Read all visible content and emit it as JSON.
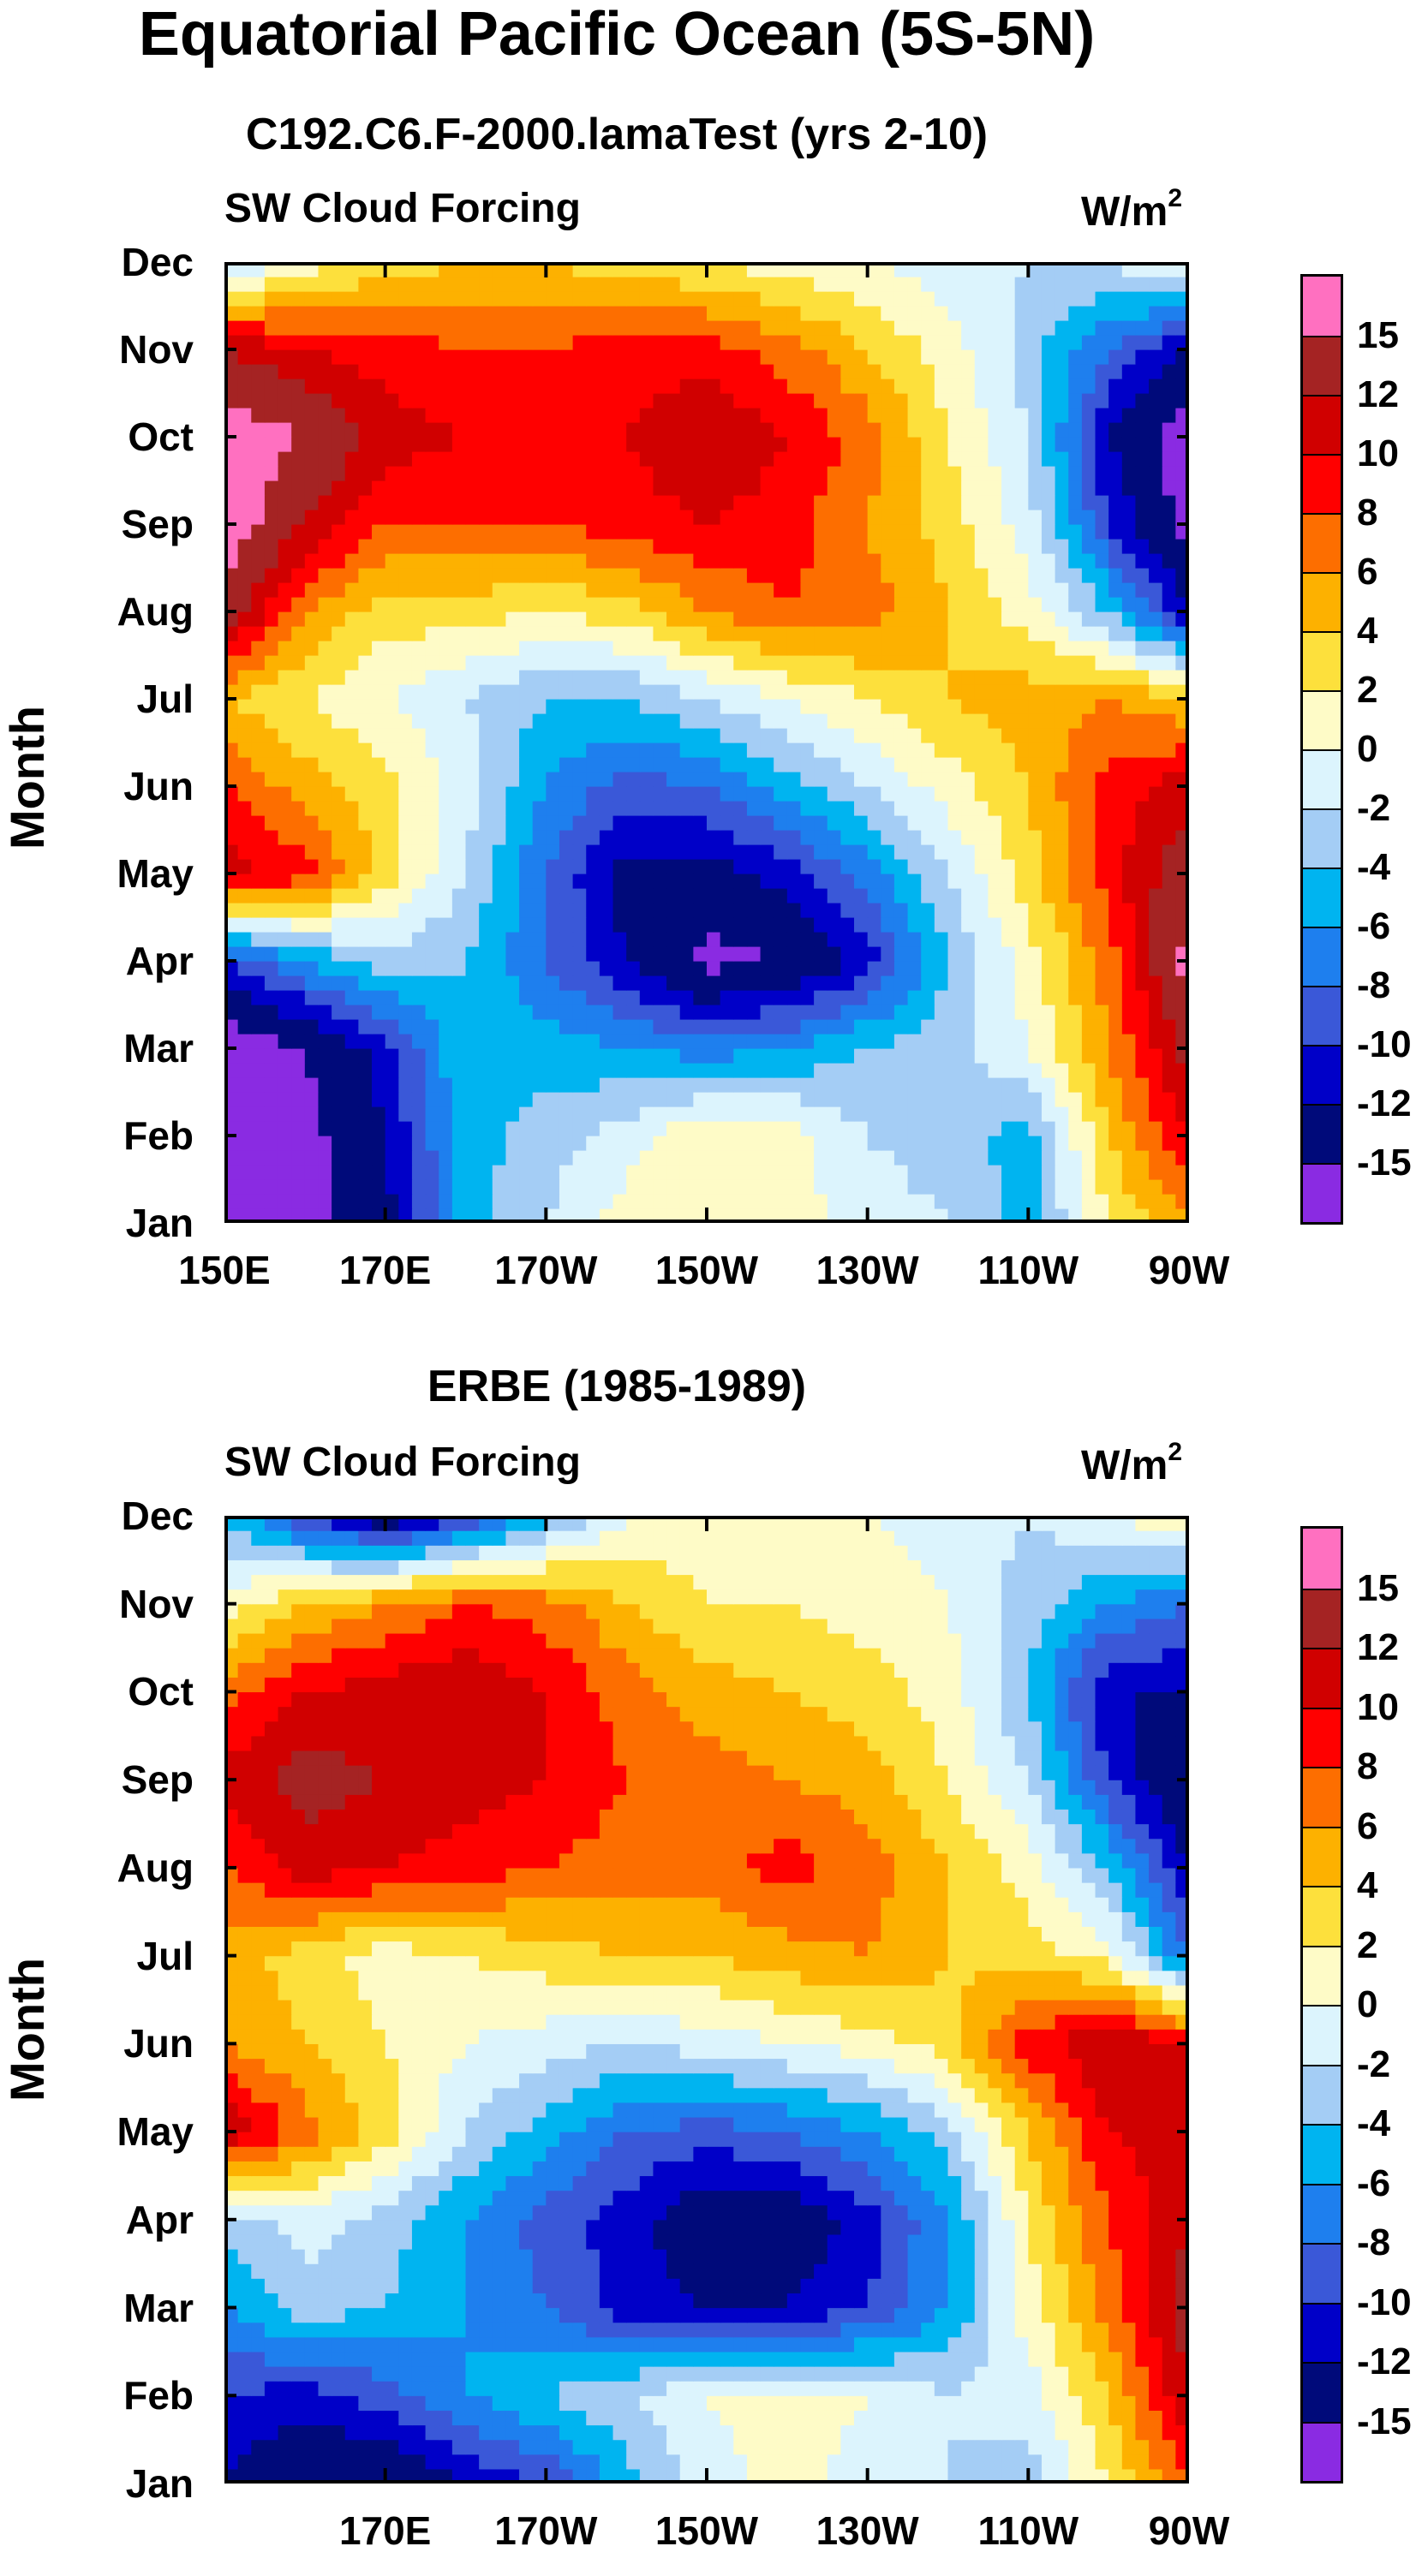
{
  "title": "Equatorial Pacific Ocean (5S-5N)",
  "palette": [
    "#8a2be2",
    "#000a7a",
    "#0000c8",
    "#3a58d8",
    "#1e7fee",
    "#00b4f0",
    "#a4cdf5",
    "#dcf4fd",
    "#fefbc7",
    "#fde03c",
    "#fdb100",
    "#fd6e00",
    "#ff0000",
    "#d00000",
    "#a52323",
    "#ff70c0"
  ],
  "colorbar_labels": [
    "15",
    "12",
    "10",
    "8",
    "6",
    "4",
    "2",
    "0",
    "-2",
    "-4",
    "-6",
    "-8",
    "-10",
    "-12",
    "-15"
  ],
  "chart_data": [
    {
      "type": "heatmap",
      "title": "C192.C6.F-2000.lamaTest (yrs 2-10)",
      "left_string": "SW Cloud Forcing",
      "units": "W/m",
      "units_sup": "2",
      "ylabel": "Month",
      "y_categories": [
        "Jan",
        "Feb",
        "Mar",
        "Apr",
        "May",
        "Jun",
        "Jul",
        "Aug",
        "Sep",
        "Oct",
        "Nov",
        "Dec"
      ],
      "x_ticks": [
        "150E",
        "170E",
        "170W",
        "150W",
        "130W",
        "110W",
        "90W"
      ],
      "x_range": [
        "150E",
        "90W"
      ],
      "color_levels": [
        -15,
        -12,
        -10,
        -8,
        -6,
        -4,
        -2,
        0,
        2,
        4,
        6,
        8,
        10,
        12,
        15
      ],
      "z": [
        [
          -18,
          -16,
          -13,
          -5,
          -2,
          1,
          2,
          1,
          -1,
          -2,
          -5,
          2,
          6
        ],
        [
          -18,
          -16,
          -12,
          -5,
          -3,
          -1,
          2,
          1,
          -2,
          -3,
          -5,
          4,
          10
        ],
        [
          -17,
          -15,
          -11,
          -4,
          -5,
          -6,
          -7,
          -6,
          -4,
          -3,
          0,
          6,
          13
        ],
        [
          -10,
          -6,
          -3,
          -4,
          -8,
          -12,
          -16,
          -15,
          -11,
          -4,
          1,
          7,
          16
        ],
        [
          11,
          9,
          3,
          -2,
          -8,
          -13,
          -13,
          -11,
          -7,
          -2,
          3,
          9,
          14
        ],
        [
          8,
          5,
          3,
          -1,
          -6,
          -9,
          -8,
          -5,
          -2,
          1,
          4,
          9,
          11
        ],
        [
          4,
          2,
          0,
          -2,
          -4,
          -4,
          -2,
          0,
          2,
          4,
          5,
          6,
          4
        ],
        [
          14,
          6,
          3,
          3,
          2,
          3,
          6,
          8,
          7,
          4,
          1,
          -4,
          -12
        ],
        [
          17,
          12,
          8,
          8,
          8,
          9,
          10,
          9,
          6,
          3,
          -1,
          -10,
          -16
        ],
        [
          17,
          15,
          11,
          10,
          9,
          10,
          12,
          10,
          7,
          2,
          -2,
          -12,
          -17
        ],
        [
          12,
          10,
          9,
          8,
          8,
          9,
          9,
          7,
          4,
          1,
          -3,
          -8,
          -12
        ],
        [
          -3,
          1,
          3,
          4,
          4,
          3,
          2,
          1,
          0,
          -1,
          -2,
          -2,
          1
        ]
      ]
    },
    {
      "type": "heatmap",
      "title": "ERBE (1985-1989)",
      "left_string": "SW Cloud Forcing",
      "units": "W/m",
      "units_sup": "2",
      "ylabel": "Month",
      "y_categories": [
        "Jan",
        "Feb",
        "Mar",
        "Apr",
        "May",
        "Jun",
        "Jul",
        "Aug",
        "Sep",
        "Oct",
        "Nov",
        "Dec"
      ],
      "x_ticks": [
        "170E",
        "170W",
        "150W",
        "130W",
        "110W",
        "90W"
      ],
      "x_range": [
        "150E",
        "90W"
      ],
      "color_levels": [
        -15,
        -12,
        -10,
        -8,
        -6,
        -4,
        -2,
        0,
        2,
        4,
        6,
        8,
        10,
        12,
        15
      ],
      "z": [
        [
          -12,
          -15,
          -15,
          -12,
          -10,
          -5,
          -1,
          1,
          -1,
          -2,
          -3,
          2,
          8
        ],
        [
          -10,
          -11,
          -9,
          -6,
          -4,
          -2,
          0,
          1,
          0,
          -2,
          -1,
          4,
          12
        ],
        [
          -6,
          -3,
          -4,
          -6,
          -8,
          -11,
          -12,
          -12,
          -10,
          -6,
          1,
          7,
          13
        ],
        [
          -3,
          -1,
          -3,
          -6,
          -9,
          -11,
          -14,
          -14,
          -11,
          -6,
          2,
          8,
          12
        ],
        [
          12,
          7,
          3,
          -2,
          -5,
          -8,
          -9,
          -8,
          -6,
          -3,
          4,
          10,
          11
        ],
        [
          6,
          4,
          2,
          0,
          -1,
          -2,
          -1,
          0,
          1,
          3,
          9,
          12,
          10
        ],
        [
          5,
          3,
          1,
          2,
          3,
          4,
          4,
          5,
          6,
          4,
          3,
          1,
          -8
        ],
        [
          8,
          11,
          10,
          9,
          8,
          7,
          7,
          9,
          7,
          4,
          1,
          -4,
          -12
        ],
        [
          11,
          13,
          12,
          11,
          10,
          8,
          7,
          6,
          5,
          2,
          -2,
          -10,
          -15
        ],
        [
          7,
          10,
          11,
          12,
          10,
          7,
          5,
          4,
          3,
          1,
          -4,
          -12,
          -12
        ],
        [
          1,
          4,
          6,
          8,
          7,
          4,
          2,
          2,
          1,
          0,
          -3,
          -6,
          -8
        ],
        [
          -4,
          -10,
          -14,
          -10,
          -5,
          0,
          1,
          1,
          0,
          -1,
          -2,
          0,
          2
        ]
      ]
    }
  ]
}
